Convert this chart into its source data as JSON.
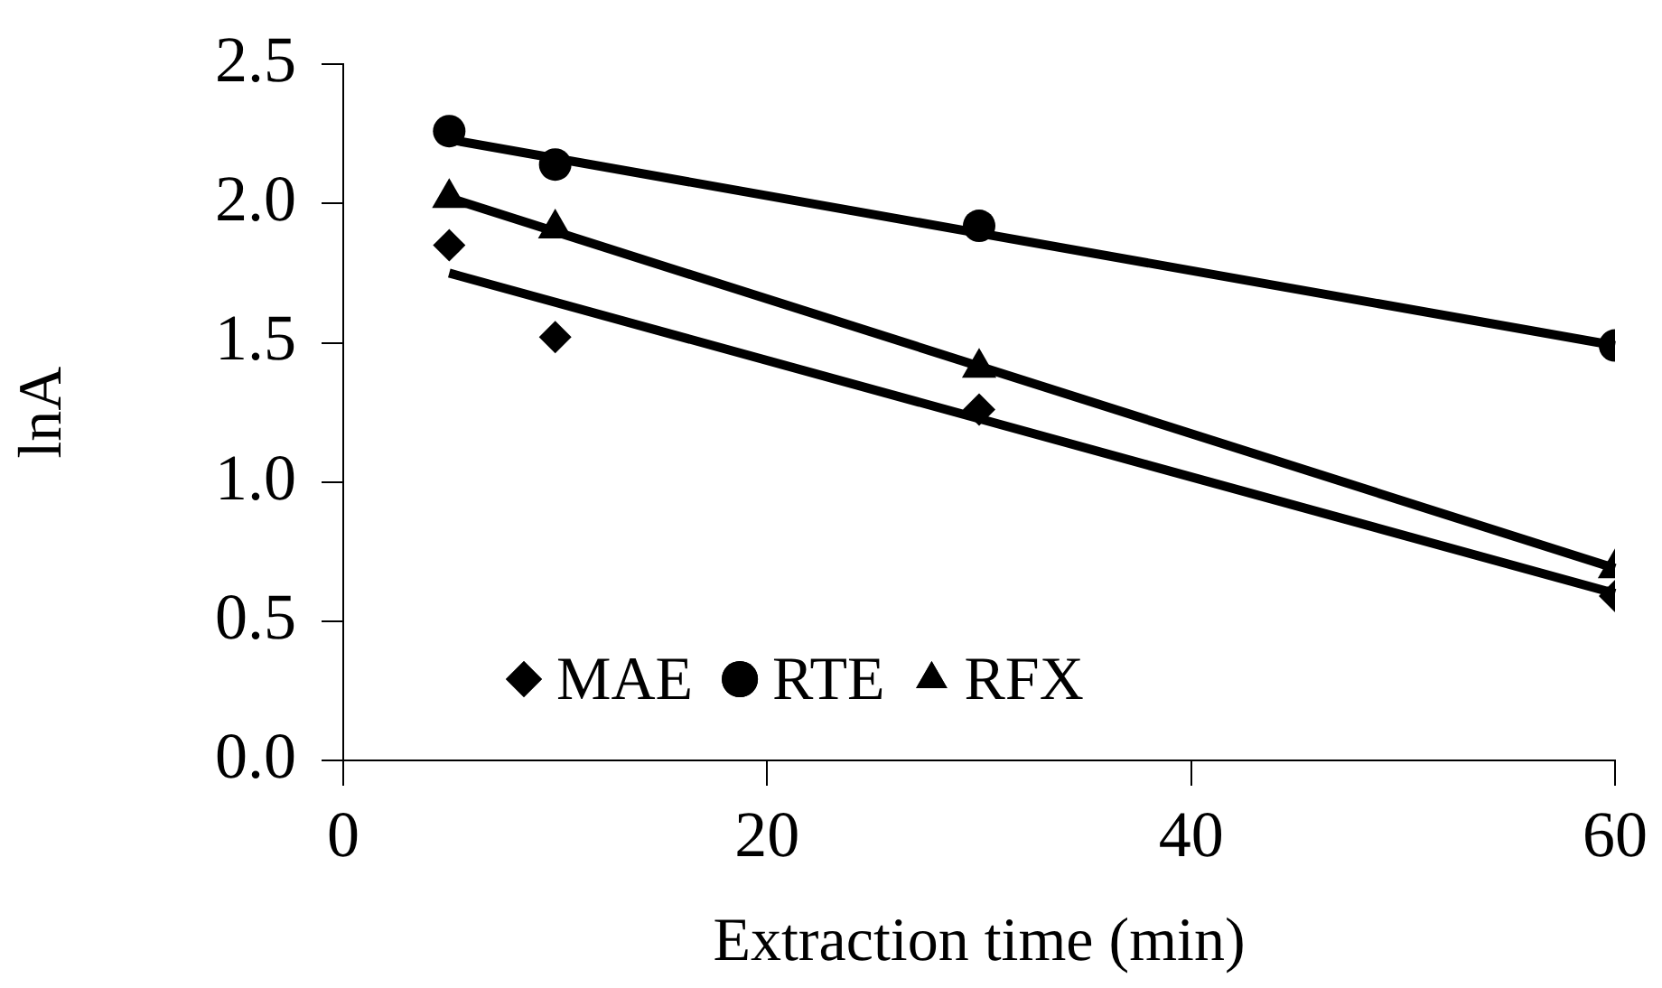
{
  "chart_data": {
    "type": "scatter",
    "xlabel": "Extraction time (min)",
    "ylabel": "lnA",
    "x": [
      5,
      10,
      30,
      60
    ],
    "series": [
      {
        "name": "MAE",
        "color": "#000000",
        "marker": "diamond",
        "values": [
          1.85,
          1.52,
          1.26,
          0.59
        ]
      },
      {
        "name": "RTE",
        "color": "#000000",
        "marker": "circle",
        "values": [
          2.26,
          2.14,
          1.92,
          1.49
        ]
      },
      {
        "name": "RFX",
        "color": "#000000",
        "marker": "triangle",
        "values": [
          2.02,
          1.91,
          1.41,
          0.69
        ]
      },
      {
        "type": "line",
        "color": "#000000",
        "marker": "none",
        "values": [
          1.75,
          null,
          null,
          0.6
        ]
      },
      {
        "type": "line",
        "color": "#000000",
        "marker": "none",
        "values": [
          2.23,
          null,
          null,
          1.49
        ]
      },
      {
        "type": "line",
        "color": "#000000",
        "marker": "none",
        "values": [
          2.02,
          null,
          null,
          0.69
        ]
      }
    ],
    "xlim": [
      0,
      60
    ],
    "xticks": [
      0,
      20,
      40,
      60
    ],
    "ylim": [
      0,
      2.5
    ],
    "yticks": [
      {
        "value": 0,
        "label": "0.0"
      },
      {
        "value": 0.5,
        "label": "0.5"
      },
      {
        "value": 1,
        "label": "1.0"
      },
      {
        "value": 1.5,
        "label": "1.5"
      },
      {
        "value": 2,
        "label": "2.0"
      },
      {
        "value": 2.5,
        "label": "2.5"
      }
    ],
    "grid": false,
    "legend": "bottom left"
  }
}
